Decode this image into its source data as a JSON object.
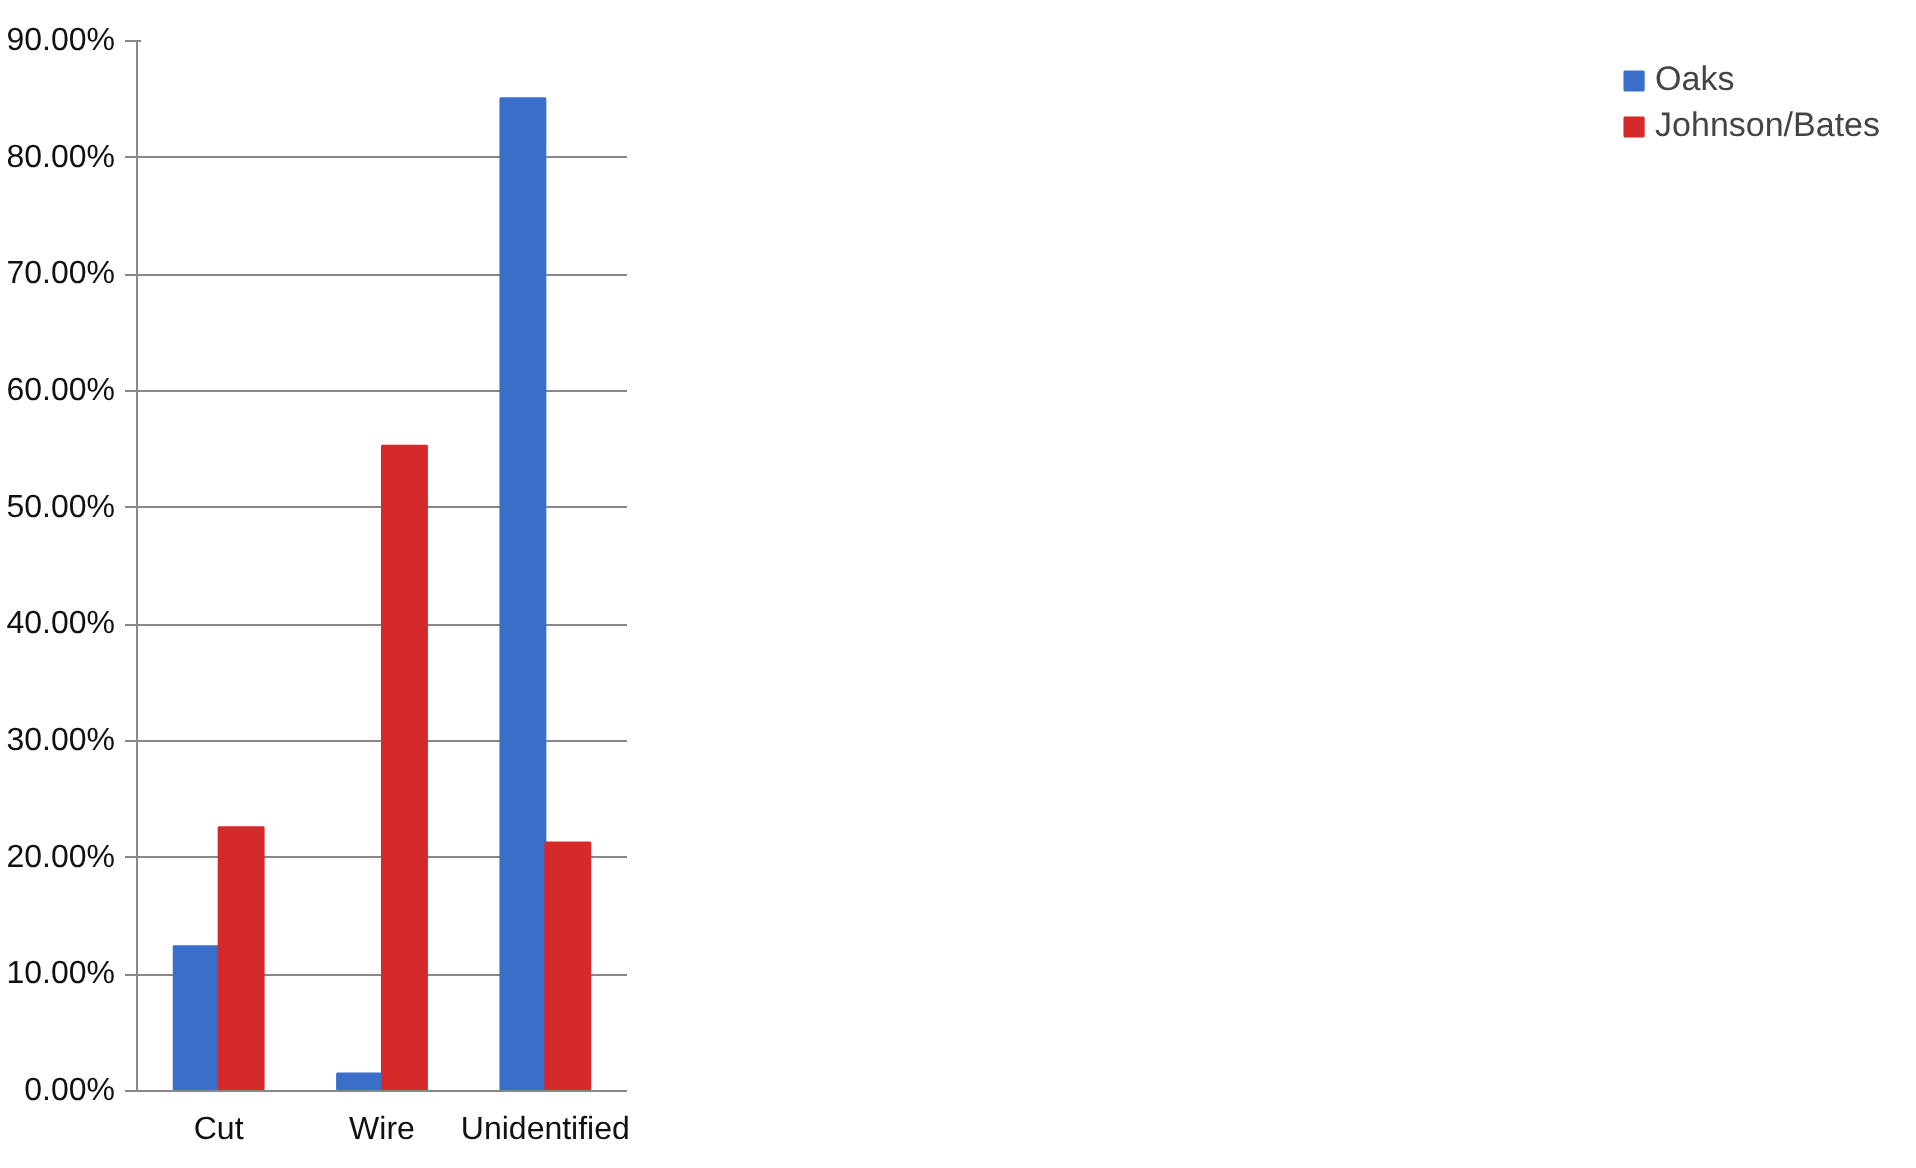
{
  "chart_data": {
    "type": "bar",
    "categories": [
      "Cut",
      "Wire",
      "Unidentified"
    ],
    "series": [
      {
        "name": "Oaks",
        "color": "#3a6fc9",
        "values": [
          12.4,
          1.5,
          85.1
        ]
      },
      {
        "name": "Johnson/Bates",
        "color": "#d42a2a",
        "values": [
          22.6,
          55.3,
          21.3
        ]
      }
    ],
    "ylim": [
      0,
      90
    ],
    "yticks": [
      {
        "value": 0,
        "label": "0.00%"
      },
      {
        "value": 10,
        "label": "10.00%"
      },
      {
        "value": 20,
        "label": "20.00%"
      },
      {
        "value": 30,
        "label": "30.00%"
      },
      {
        "value": 40,
        "label": "40.00%"
      },
      {
        "value": 50,
        "label": "50.00%"
      },
      {
        "value": 60,
        "label": "60.00%"
      },
      {
        "value": 70,
        "label": "70.00%"
      },
      {
        "value": 80,
        "label": "80.00%"
      },
      {
        "value": 90,
        "label": "90.00%"
      }
    ],
    "grid": "y",
    "legend": "right"
  }
}
